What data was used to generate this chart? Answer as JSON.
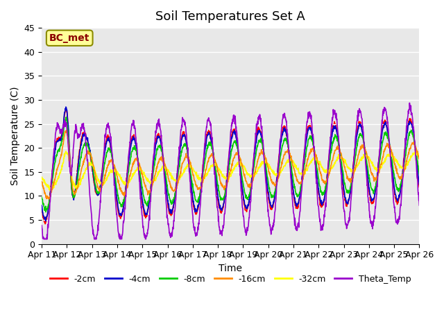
{
  "title": "Soil Temperatures Set A",
  "xlabel": "Time",
  "ylabel": "Soil Temperature (C)",
  "ylim": [
    0,
    45
  ],
  "yticks": [
    0,
    5,
    10,
    15,
    20,
    25,
    30,
    35,
    40,
    45
  ],
  "xlim_days": [
    0,
    15
  ],
  "x_tick_labels": [
    "Apr 11",
    "Apr 12",
    "Apr 13",
    "Apr 14",
    "Apr 15",
    "Apr 16",
    "Apr 17",
    "Apr 18",
    "Apr 19",
    "Apr 20",
    "Apr 21",
    "Apr 22",
    "Apr 23",
    "Apr 24",
    "Apr 25",
    "Apr 26"
  ],
  "annotation_text": "BC_met",
  "annotation_color": "#8B0000",
  "annotation_bg": "#FFFF99",
  "series_colors": {
    "-2cm": "#FF0000",
    "-4cm": "#0000CC",
    "-8cm": "#00CC00",
    "-16cm": "#FF8C00",
    "-32cm": "#FFFF00",
    "Theta_Temp": "#9900CC"
  },
  "series_lw": {
    "-2cm": 1.2,
    "-4cm": 1.2,
    "-8cm": 1.2,
    "-16cm": 1.2,
    "-32cm": 1.2,
    "Theta_Temp": 1.2
  },
  "bg_color": "#E8E8E8",
  "fig_bg": "#FFFFFF",
  "grid_color": "#FFFFFF",
  "title_fontsize": 13,
  "label_fontsize": 10,
  "tick_fontsize": 9,
  "legend_fontsize": 9
}
